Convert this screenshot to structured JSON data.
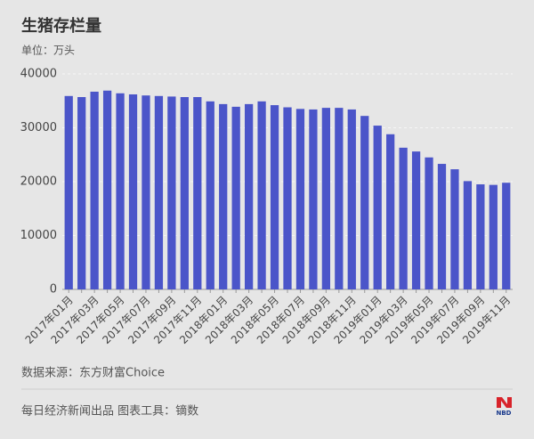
{
  "chart_data": {
    "type": "bar",
    "title": "生猪存栏量",
    "unit": "单位：万头",
    "source": "数据来源：东方财富Choice",
    "credit": "每日经济新闻出品 图表工具：镝数",
    "logo": "NBD",
    "categories": [
      "2017年01月",
      null,
      "2017年03月",
      null,
      "2017年05月",
      null,
      "2017年07月",
      null,
      "2017年09月",
      null,
      "2017年11月",
      null,
      "2018年01月",
      null,
      "2018年03月",
      null,
      "2018年05月",
      null,
      "2018年07月",
      null,
      "2018年09月",
      null,
      "2018年11月",
      null,
      "2019年01月",
      null,
      "2019年03月",
      null,
      "2019年05月",
      null,
      "2019年07月",
      null,
      "2019年09月",
      null,
      "2019年11月"
    ],
    "values": [
      35900,
      35700,
      36700,
      36900,
      36400,
      36200,
      36000,
      35900,
      35800,
      35700,
      35700,
      34900,
      34400,
      33900,
      34400,
      34900,
      34200,
      33800,
      33500,
      33400,
      33700,
      33700,
      33400,
      32200,
      30400,
      28800,
      26300,
      25600,
      24500,
      23300,
      22300,
      20100,
      19500,
      19400,
      19800
    ],
    "color": "#4b55c9",
    "ylim": [
      0,
      40000
    ],
    "yticks": [
      0,
      10000,
      20000,
      30000,
      40000
    ],
    "grid": true
  }
}
